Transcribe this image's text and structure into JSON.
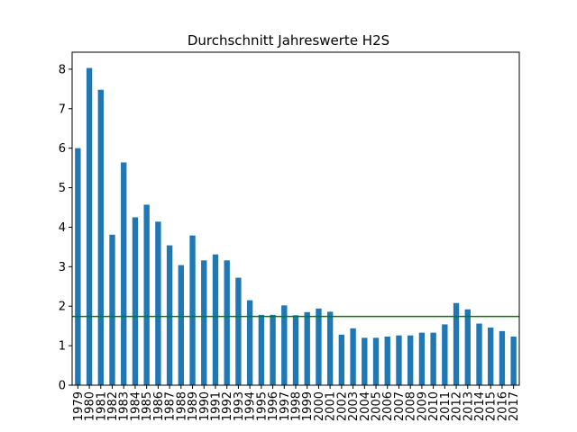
{
  "chart_data": {
    "type": "bar",
    "title": "Durchschnitt Jahreswerte H2S",
    "xlabel": "",
    "ylabel": "",
    "categories": [
      "1979",
      "1980",
      "1981",
      "1982",
      "1983",
      "1984",
      "1985",
      "1986",
      "1987",
      "1988",
      "1989",
      "1990",
      "1991",
      "1992",
      "1993",
      "1994",
      "1995",
      "1996",
      "1997",
      "1998",
      "1999",
      "2000",
      "2001",
      "2002",
      "2003",
      "2004",
      "2005",
      "2006",
      "2007",
      "2008",
      "2009",
      "2010",
      "2011",
      "2012",
      "2013",
      "2014",
      "2015",
      "2016",
      "2017"
    ],
    "values": [
      6.0,
      8.03,
      7.48,
      3.81,
      5.64,
      4.25,
      4.57,
      4.14,
      3.54,
      3.04,
      3.79,
      3.16,
      3.31,
      3.16,
      2.72,
      2.15,
      1.78,
      1.78,
      2.02,
      1.77,
      1.85,
      1.94,
      1.86,
      1.28,
      1.44,
      1.2,
      1.2,
      1.23,
      1.26,
      1.26,
      1.33,
      1.33,
      1.54,
      2.08,
      1.92,
      1.56,
      1.46,
      1.37,
      1.23
    ],
    "reference_line": {
      "value": 1.74,
      "color": "#008000"
    },
    "ylim": [
      0,
      8.43
    ],
    "yticks": [
      "0",
      "1",
      "2",
      "3",
      "4",
      "5",
      "6",
      "7",
      "8"
    ],
    "bar_color": "#1f77b4",
    "grid": false,
    "legend": "none"
  }
}
